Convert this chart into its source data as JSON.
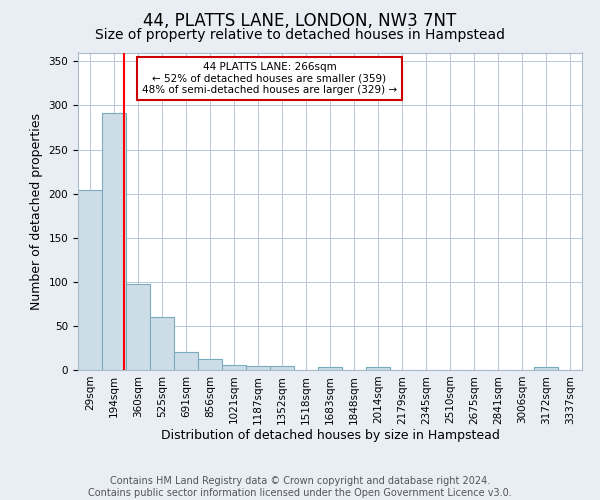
{
  "title": "44, PLATTS LANE, LONDON, NW3 7NT",
  "subtitle": "Size of property relative to detached houses in Hampstead",
  "xlabel": "Distribution of detached houses by size in Hampstead",
  "ylabel": "Number of detached properties",
  "bar_labels": [
    "29sqm",
    "194sqm",
    "360sqm",
    "525sqm",
    "691sqm",
    "856sqm",
    "1021sqm",
    "1187sqm",
    "1352sqm",
    "1518sqm",
    "1683sqm",
    "1848sqm",
    "2014sqm",
    "2179sqm",
    "2345sqm",
    "2510sqm",
    "2675sqm",
    "2841sqm",
    "3006sqm",
    "3172sqm",
    "3337sqm"
  ],
  "bar_values": [
    204,
    291,
    97,
    60,
    20,
    12,
    6,
    5,
    4,
    0,
    3,
    0,
    3,
    0,
    0,
    0,
    0,
    0,
    0,
    3,
    0
  ],
  "bar_color": "#ccdde8",
  "bar_edge_color": "#7aaabb",
  "bar_edge_width": 0.8,
  "ylim": [
    0,
    360
  ],
  "annotation_text": "44 PLATTS LANE: 266sqm\n← 52% of detached houses are smaller (359)\n48% of semi-detached houses are larger (329) →",
  "annotation_box_color": "white",
  "annotation_box_edge_color": "#cc0000",
  "footer1": "Contains HM Land Registry data © Crown copyright and database right 2024.",
  "footer2": "Contains public sector information licensed under the Open Government Licence v3.0.",
  "bg_color": "#e8eef4",
  "plot_bg_color": "white",
  "grid_color": "#b8c8d8",
  "title_fontsize": 12,
  "subtitle_fontsize": 10,
  "label_fontsize": 9,
  "tick_fontsize": 7.5,
  "footer_fontsize": 7
}
